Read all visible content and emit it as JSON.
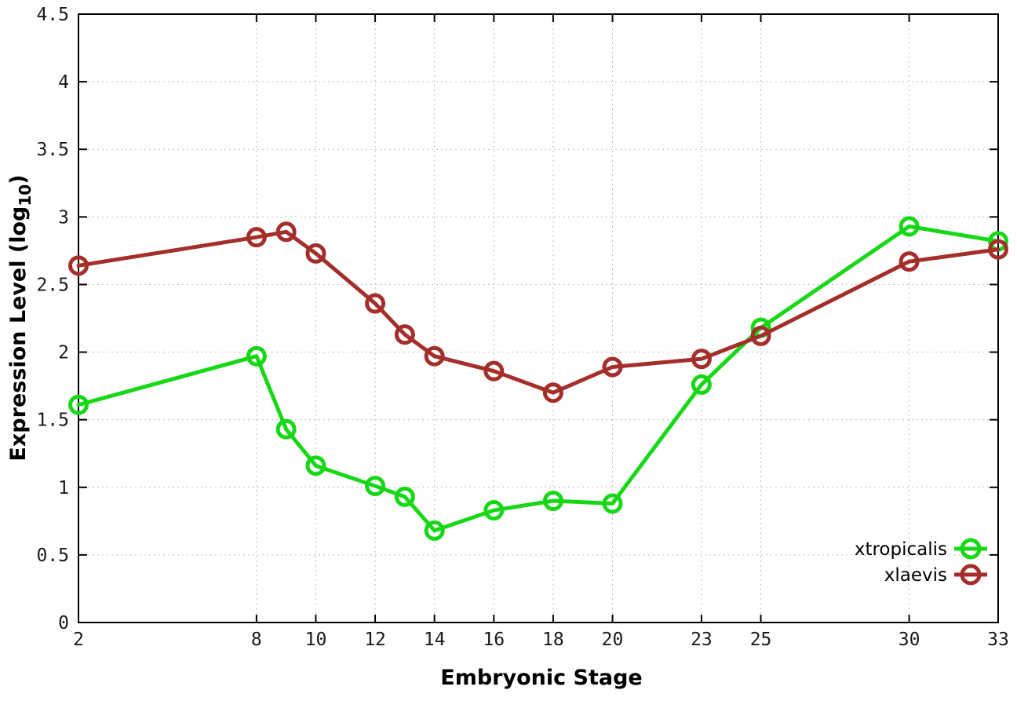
{
  "chart_data": {
    "type": "line",
    "title": "",
    "xlabel": "Embryonic Stage",
    "ylabel": "Expression Level (log10)",
    "ylabel_parts": {
      "main": "Expression Level (log",
      "subscript": "10",
      "suffix": ")"
    },
    "x": [
      2,
      8,
      9,
      10,
      12,
      13,
      14,
      16,
      18,
      20,
      23,
      25,
      30,
      33
    ],
    "series": [
      {
        "name": "xtropicalis",
        "color": "#17d817",
        "values": [
          1.61,
          1.97,
          1.43,
          1.16,
          1.01,
          0.93,
          0.68,
          0.83,
          0.9,
          0.88,
          1.76,
          2.18,
          2.93,
          2.82
        ]
      },
      {
        "name": "xlaevis",
        "color": "#a42f2a",
        "values": [
          2.64,
          2.85,
          2.89,
          2.73,
          2.36,
          2.13,
          1.97,
          1.86,
          1.7,
          1.89,
          1.95,
          2.12,
          2.67,
          2.76
        ]
      }
    ],
    "xlim": [
      2,
      33
    ],
    "ylim": [
      0,
      4.5
    ],
    "xticks": [
      2,
      8,
      10,
      12,
      14,
      16,
      18,
      20,
      23,
      25,
      30,
      33
    ],
    "yticks": [
      0,
      0.5,
      1,
      1.5,
      2,
      2.5,
      3,
      3.5,
      4,
      4.5
    ],
    "ytick_labels": [
      "0",
      "0.5",
      "1",
      "1.5",
      "2",
      "2.5",
      "3",
      "3.5",
      "4",
      "4.5"
    ],
    "grid": "dotted, on all major ticks",
    "legend_position": "inside bottom-right",
    "marker": "open-circle",
    "background": "#ffffff",
    "grid_color": "#bdbdbd",
    "axis_color": "#000000"
  }
}
